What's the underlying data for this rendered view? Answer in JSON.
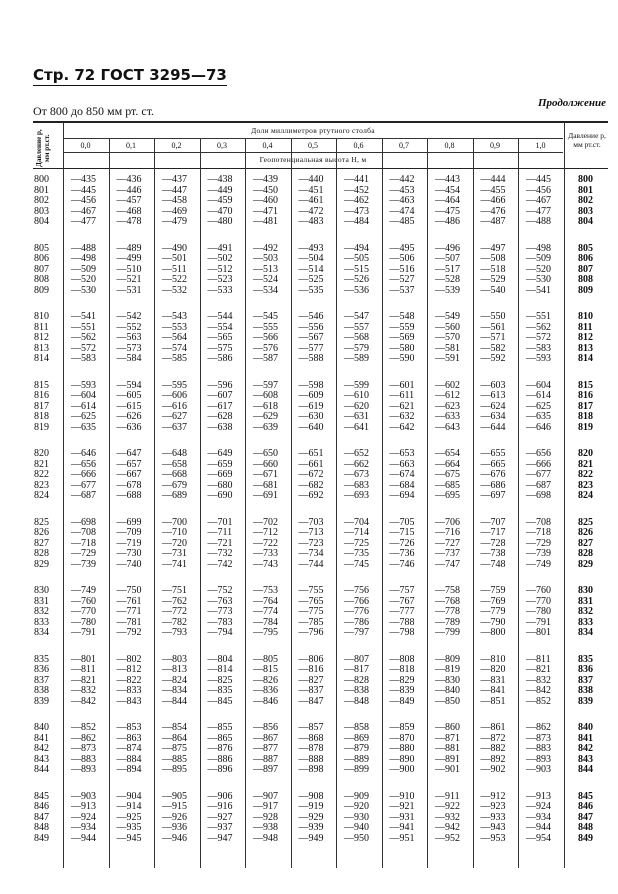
{
  "page_header": "Стр. 72 ГОСТ 3295—73",
  "continuation": "Продолжение",
  "range_caption": "От 800 до 850 мм рт. ст.",
  "table": {
    "left_header": "Давление p, мм рт.ст.",
    "right_header": "Давление p, мм рт.ст.",
    "fractions_header": "Доли миллиметров ртутного столба",
    "height_header": "Геопотенциальная высота H, м",
    "columns": [
      "0,0",
      "0,1",
      "0,2",
      "0,3",
      "0,4",
      "0,5",
      "0,6",
      "0,7",
      "0,8",
      "0,9",
      "1,0"
    ],
    "rows": [
      {
        "p": "800",
        "v": [
          -435,
          -436,
          -437,
          -438,
          -439,
          -440,
          -441,
          -442,
          -443,
          -444,
          -445
        ]
      },
      {
        "p": "801",
        "v": [
          -445,
          -446,
          -447,
          -449,
          -450,
          -451,
          -452,
          -453,
          -454,
          -455,
          -456
        ]
      },
      {
        "p": "802",
        "v": [
          -456,
          -457,
          -458,
          -459,
          -460,
          -461,
          -462,
          -463,
          -464,
          -466,
          -467
        ]
      },
      {
        "p": "803",
        "v": [
          -467,
          -468,
          -469,
          -470,
          -471,
          -472,
          -473,
          -474,
          -475,
          -476,
          -477
        ]
      },
      {
        "p": "804",
        "v": [
          -477,
          -478,
          -479,
          -480,
          -481,
          -483,
          -484,
          -485,
          -486,
          -487,
          -488
        ]
      },
      {
        "p": "805",
        "v": [
          -488,
          -489,
          -490,
          -491,
          -492,
          -493,
          -494,
          -495,
          -496,
          -497,
          -498
        ]
      },
      {
        "p": "806",
        "v": [
          -498,
          -499,
          -501,
          -502,
          -503,
          -504,
          -505,
          -506,
          -507,
          -508,
          -509
        ]
      },
      {
        "p": "807",
        "v": [
          -509,
          -510,
          -511,
          -512,
          -513,
          -514,
          -515,
          -516,
          -517,
          -518,
          -520
        ]
      },
      {
        "p": "808",
        "v": [
          -520,
          -521,
          -522,
          -523,
          -524,
          -525,
          -526,
          -527,
          -528,
          -529,
          -530
        ]
      },
      {
        "p": "809",
        "v": [
          -530,
          -531,
          -532,
          -533,
          -534,
          -535,
          -536,
          -537,
          -539,
          -540,
          -541
        ]
      },
      {
        "p": "810",
        "v": [
          -541,
          -542,
          -543,
          -544,
          -545,
          -546,
          -547,
          -548,
          -549,
          -550,
          -551
        ]
      },
      {
        "p": "811",
        "v": [
          -551,
          -552,
          -553,
          -554,
          -555,
          -556,
          -557,
          -559,
          -560,
          -561,
          -562
        ]
      },
      {
        "p": "812",
        "v": [
          -562,
          -563,
          -564,
          -565,
          -566,
          -567,
          -568,
          -569,
          -570,
          -571,
          -572
        ]
      },
      {
        "p": "813",
        "v": [
          -572,
          -573,
          -574,
          -575,
          -576,
          -577,
          -579,
          -580,
          -581,
          -582,
          -583
        ]
      },
      {
        "p": "814",
        "v": [
          -583,
          -584,
          -585,
          -586,
          -587,
          -588,
          -589,
          -590,
          -591,
          -592,
          -593
        ]
      },
      {
        "p": "815",
        "v": [
          -593,
          -594,
          -595,
          -596,
          -597,
          -598,
          -599,
          -601,
          -602,
          -603,
          -604
        ]
      },
      {
        "p": "816",
        "v": [
          -604,
          -605,
          -606,
          -607,
          -608,
          -609,
          -610,
          -611,
          -612,
          -613,
          -614
        ]
      },
      {
        "p": "817",
        "v": [
          -614,
          -615,
          -616,
          -617,
          -618,
          -619,
          -620,
          -621,
          -623,
          -624,
          -625
        ]
      },
      {
        "p": "818",
        "v": [
          -625,
          -626,
          -627,
          -628,
          -629,
          -630,
          -631,
          -632,
          -633,
          -634,
          -635
        ]
      },
      {
        "p": "819",
        "v": [
          -635,
          -636,
          -637,
          -638,
          -639,
          -640,
          -641,
          -642,
          -643,
          -644,
          -646
        ]
      },
      {
        "p": "820",
        "v": [
          -646,
          -647,
          -648,
          -649,
          -650,
          -651,
          -652,
          -653,
          -654,
          -655,
          -656
        ]
      },
      {
        "p": "821",
        "v": [
          -656,
          -657,
          -658,
          -659,
          -660,
          -661,
          -662,
          -663,
          -664,
          -665,
          -666
        ]
      },
      {
        "p": "822",
        "v": [
          -666,
          -667,
          -668,
          -669,
          -671,
          -672,
          -673,
          -674,
          -675,
          -676,
          -677
        ]
      },
      {
        "p": "823",
        "v": [
          -677,
          -678,
          -679,
          -680,
          -681,
          -682,
          -683,
          -684,
          -685,
          -686,
          -687
        ]
      },
      {
        "p": "824",
        "v": [
          -687,
          -688,
          -689,
          -690,
          -691,
          -692,
          -693,
          -694,
          -695,
          -697,
          -698
        ]
      },
      {
        "p": "825",
        "v": [
          -698,
          -699,
          -700,
          -701,
          -702,
          -703,
          -704,
          -705,
          -706,
          -707,
          -708
        ]
      },
      {
        "p": "826",
        "v": [
          -708,
          -709,
          -710,
          -711,
          -712,
          -713,
          -714,
          -715,
          -716,
          -717,
          -718
        ]
      },
      {
        "p": "827",
        "v": [
          -718,
          -719,
          -720,
          -721,
          -722,
          -723,
          -725,
          -726,
          -727,
          -728,
          -729
        ]
      },
      {
        "p": "828",
        "v": [
          -729,
          -730,
          -731,
          -732,
          -733,
          -734,
          -735,
          -736,
          -737,
          -738,
          -739
        ]
      },
      {
        "p": "829",
        "v": [
          -739,
          -740,
          -741,
          -742,
          -743,
          -744,
          -745,
          -746,
          -747,
          -748,
          -749
        ]
      },
      {
        "p": "830",
        "v": [
          -749,
          -750,
          -751,
          -752,
          -753,
          -755,
          -756,
          -757,
          -758,
          -759,
          -760
        ]
      },
      {
        "p": "831",
        "v": [
          -760,
          -761,
          -762,
          -763,
          -764,
          -765,
          -766,
          -767,
          -768,
          -769,
          -770
        ]
      },
      {
        "p": "832",
        "v": [
          -770,
          -771,
          -772,
          -773,
          -774,
          -775,
          -776,
          -777,
          -778,
          -779,
          -780
        ]
      },
      {
        "p": "833",
        "v": [
          -780,
          -781,
          -782,
          -783,
          -784,
          -785,
          -786,
          -788,
          -789,
          -790,
          -791
        ]
      },
      {
        "p": "834",
        "v": [
          -791,
          -792,
          -793,
          -794,
          -795,
          -796,
          -797,
          -798,
          -799,
          -800,
          -801
        ]
      },
      {
        "p": "835",
        "v": [
          -801,
          -802,
          -803,
          -804,
          -805,
          -806,
          -807,
          -808,
          -809,
          -810,
          -811
        ]
      },
      {
        "p": "836",
        "v": [
          -811,
          -812,
          -813,
          -814,
          -815,
          -816,
          -817,
          -818,
          -819,
          -820,
          -821
        ]
      },
      {
        "p": "837",
        "v": [
          -821,
          -822,
          -824,
          -825,
          -826,
          -827,
          -828,
          -829,
          -830,
          -831,
          -832
        ]
      },
      {
        "p": "838",
        "v": [
          -832,
          -833,
          -834,
          -835,
          -836,
          -837,
          -838,
          -839,
          -840,
          -841,
          -842
        ]
      },
      {
        "p": "839",
        "v": [
          -842,
          -843,
          -844,
          -845,
          -846,
          -847,
          -848,
          -849,
          -850,
          -851,
          -852
        ]
      },
      {
        "p": "840",
        "v": [
          -852,
          -853,
          -854,
          -855,
          -856,
          -857,
          -858,
          -859,
          -860,
          -861,
          -862
        ]
      },
      {
        "p": "841",
        "v": [
          -862,
          -863,
          -864,
          -865,
          -867,
          -868,
          -869,
          -870,
          -871,
          -872,
          -873
        ]
      },
      {
        "p": "842",
        "v": [
          -873,
          -874,
          -875,
          -876,
          -877,
          -878,
          -879,
          -880,
          -881,
          -882,
          -883
        ]
      },
      {
        "p": "843",
        "v": [
          -883,
          -884,
          -885,
          -886,
          -887,
          -888,
          -889,
          -890,
          -891,
          -892,
          -893
        ]
      },
      {
        "p": "844",
        "v": [
          -893,
          -894,
          -895,
          -896,
          -897,
          -898,
          -899,
          -900,
          -901,
          -902,
          -903
        ]
      },
      {
        "p": "845",
        "v": [
          -903,
          -904,
          -905,
          -906,
          -907,
          -908,
          -909,
          -910,
          -911,
          -912,
          -913
        ]
      },
      {
        "p": "846",
        "v": [
          -913,
          -914,
          -915,
          -916,
          -917,
          -919,
          -920,
          -921,
          -922,
          -923,
          -924
        ]
      },
      {
        "p": "847",
        "v": [
          -924,
          -925,
          -926,
          -927,
          -928,
          -929,
          -930,
          -931,
          -932,
          -933,
          -934
        ]
      },
      {
        "p": "848",
        "v": [
          -934,
          -935,
          -936,
          -937,
          -938,
          -939,
          -940,
          -941,
          -942,
          -943,
          -944
        ]
      },
      {
        "p": "849",
        "v": [
          -944,
          -945,
          -946,
          -947,
          -948,
          -949,
          -950,
          -951,
          -952,
          -953,
          -954
        ]
      }
    ]
  }
}
